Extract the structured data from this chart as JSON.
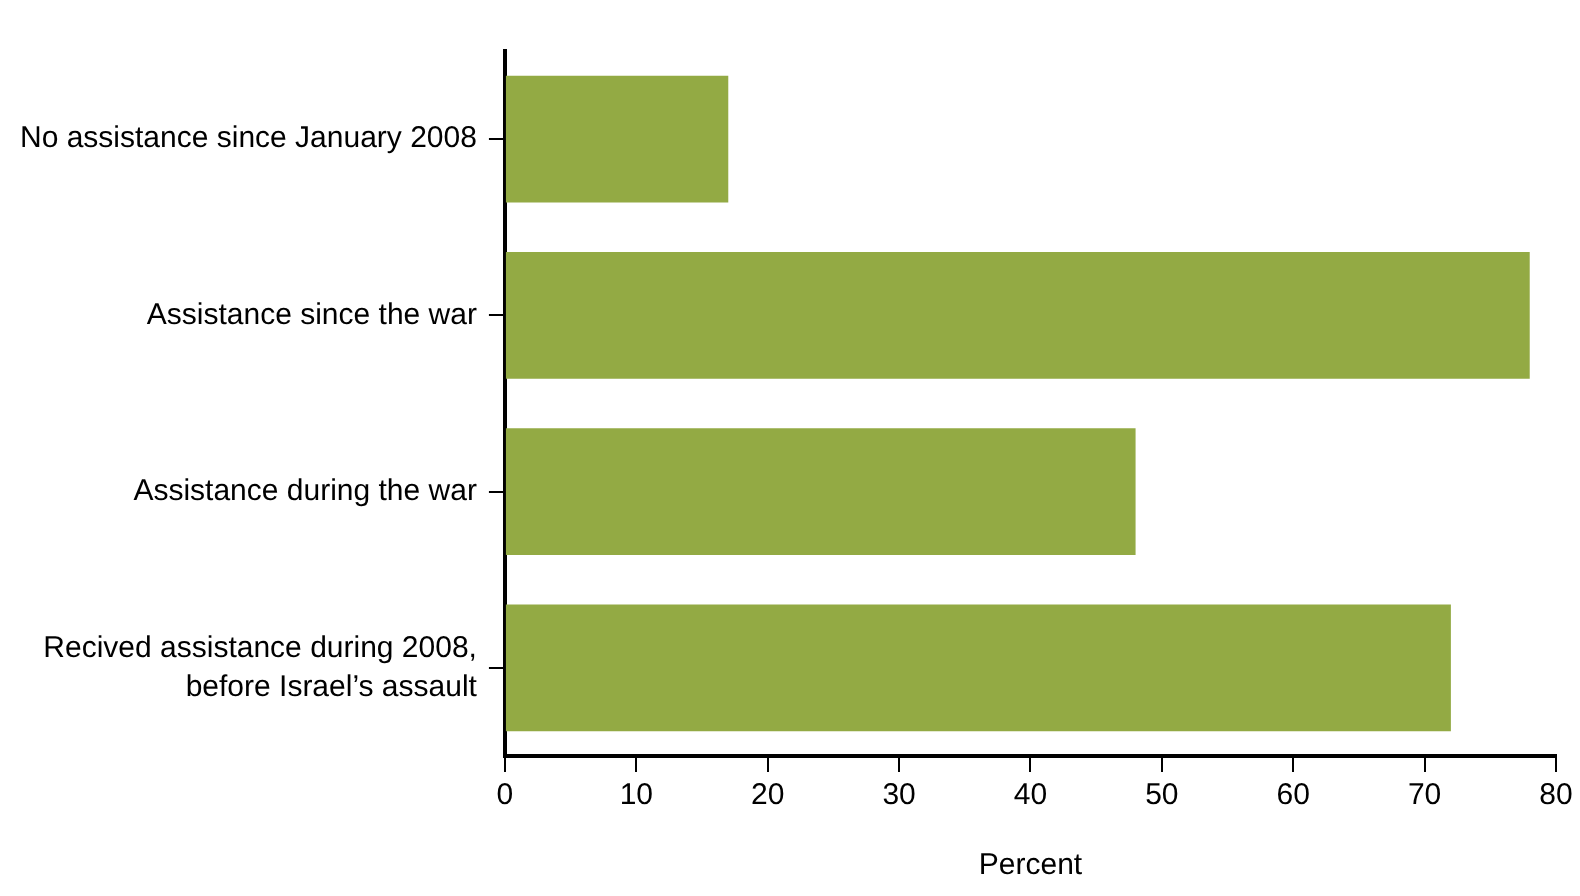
{
  "chart_data": {
    "type": "bar",
    "orientation": "horizontal",
    "xlabel": "Percent",
    "categories": [
      "No assistance since January 2008",
      "Assistance since the war",
      "Assistance during the war",
      "Recived assistance during 2008, before Israel’s assault"
    ],
    "values": [
      17,
      78,
      48,
      72
    ],
    "color": "#93aa44",
    "xlim": [
      0,
      80
    ],
    "xticks": [
      0,
      10,
      20,
      30,
      40,
      50,
      60,
      70,
      80
    ],
    "grid": false,
    "legend": false
  }
}
